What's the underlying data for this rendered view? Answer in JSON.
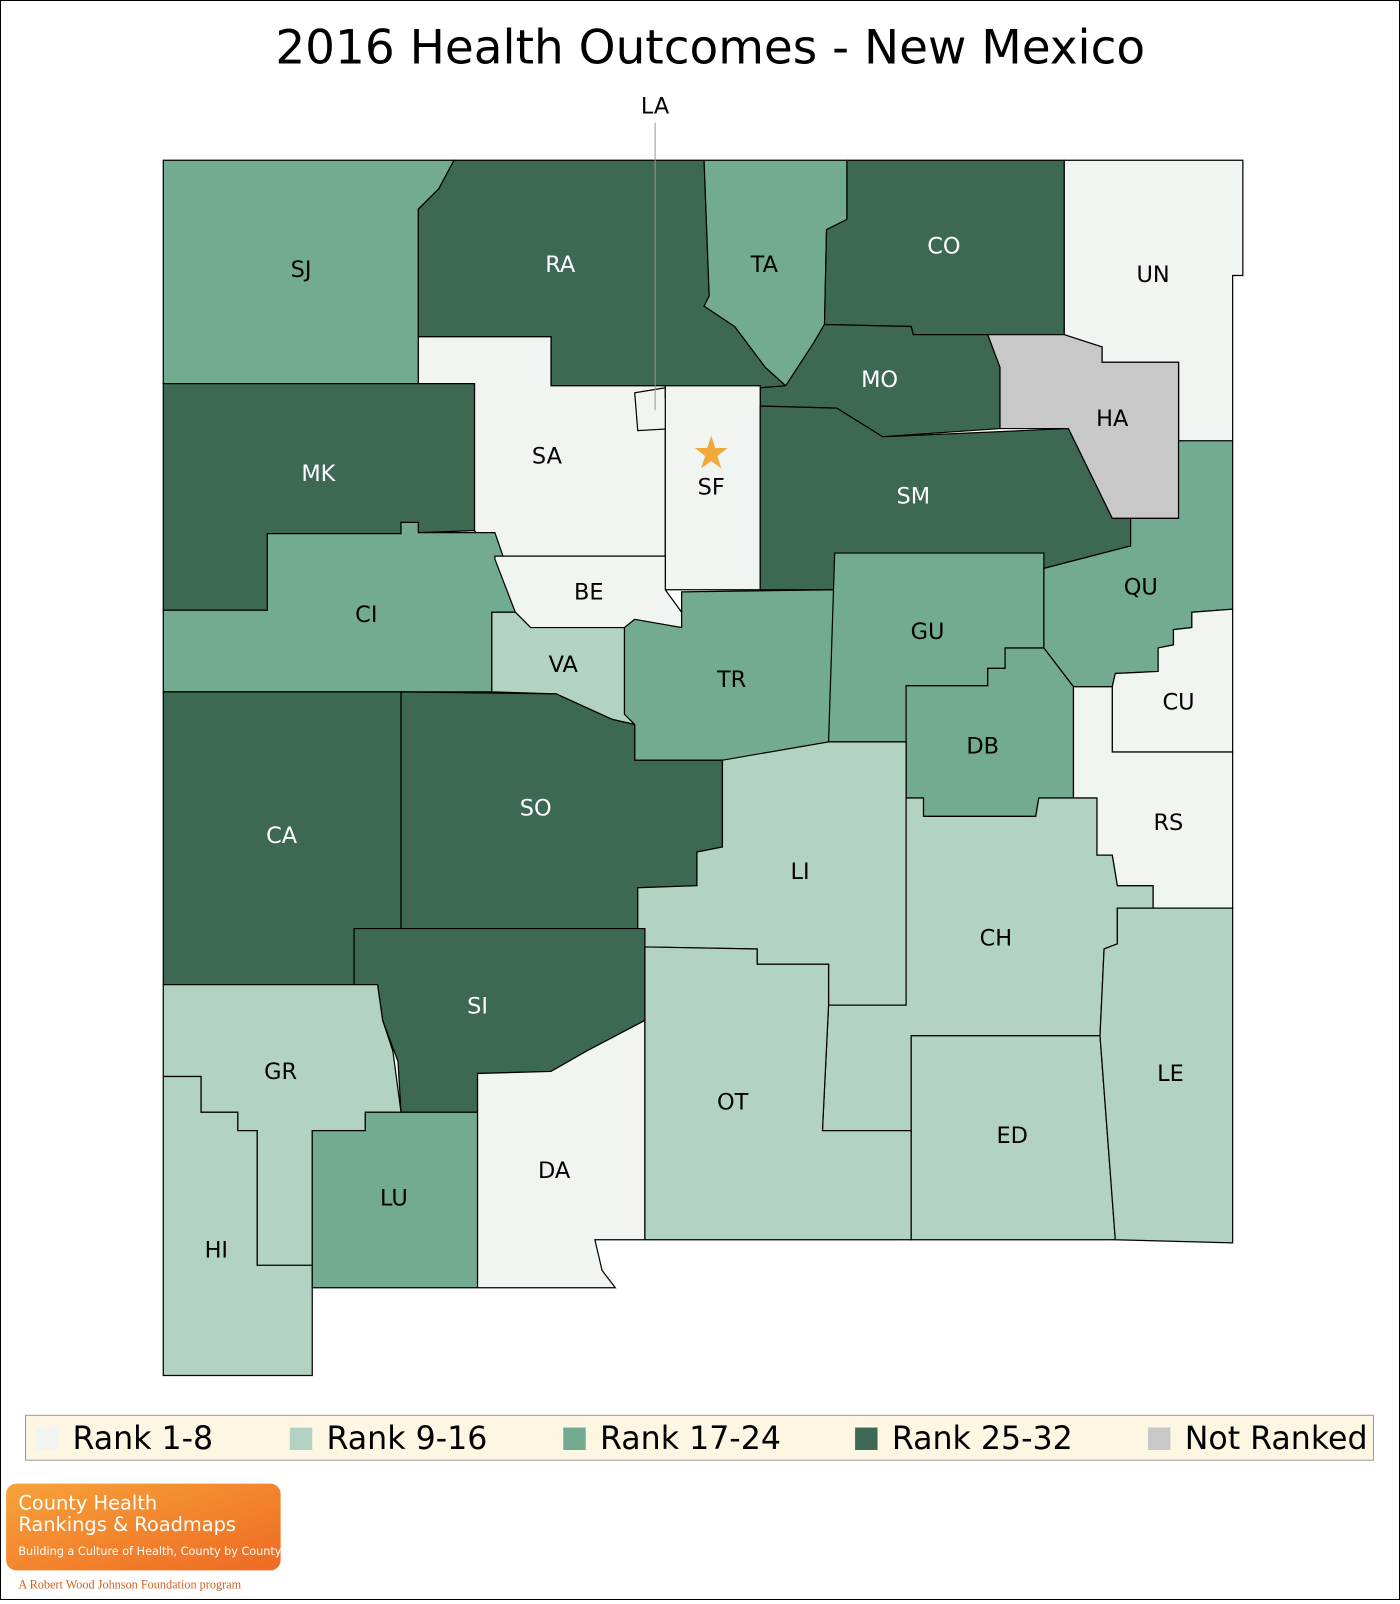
{
  "title": "2016 Health Outcomes - New Mexico",
  "legend": [
    {
      "label": "Rank 1-8",
      "color": "#f0f5f2"
    },
    {
      "label": "Rank 9-16",
      "color": "#b2d3c3"
    },
    {
      "label": "Rank 17-24",
      "color": "#72ab91"
    },
    {
      "label": "Rank 25-32",
      "color": "#3d6854"
    },
    {
      "label": "Not Ranked",
      "color": "#c8c8c8"
    }
  ],
  "counties": [
    {
      "label": "SJ",
      "class": 2
    },
    {
      "label": "RA",
      "class": 3
    },
    {
      "label": "TA",
      "class": 2
    },
    {
      "label": "CO",
      "class": 3
    },
    {
      "label": "UN",
      "class": 0
    },
    {
      "label": "MO",
      "class": 3
    },
    {
      "label": "HA",
      "class": 4
    },
    {
      "label": "SA",
      "class": 0
    },
    {
      "label": "LA",
      "class": 0
    },
    {
      "label": "SF",
      "class": 0
    },
    {
      "label": "SM",
      "class": 3
    },
    {
      "label": "MK",
      "class": 3
    },
    {
      "label": "CI",
      "class": 2
    },
    {
      "label": "BE",
      "class": 0
    },
    {
      "label": "VA",
      "class": 1
    },
    {
      "label": "TR",
      "class": 2
    },
    {
      "label": "GU",
      "class": 2
    },
    {
      "label": "QU",
      "class": 2
    },
    {
      "label": "CU",
      "class": 0
    },
    {
      "label": "DB",
      "class": 2
    },
    {
      "label": "RS",
      "class": 0
    },
    {
      "label": "CA",
      "class": 3
    },
    {
      "label": "SO",
      "class": 3
    },
    {
      "label": "LI",
      "class": 1
    },
    {
      "label": "CH",
      "class": 1
    },
    {
      "label": "SI",
      "class": 3
    },
    {
      "label": "GR",
      "class": 1
    },
    {
      "label": "HI",
      "class": 1
    },
    {
      "label": "LU",
      "class": 2
    },
    {
      "label": "DA",
      "class": 0
    },
    {
      "label": "OT",
      "class": 1
    },
    {
      "label": "ED",
      "class": 1
    },
    {
      "label": "LE",
      "class": 1
    }
  ],
  "logo": {
    "line1": "County Health",
    "line2": "Rankings & Roadmaps",
    "tagline": "Building a Culture of Health, County by County",
    "footer": "A Robert Wood Johnson Foundation program"
  }
}
